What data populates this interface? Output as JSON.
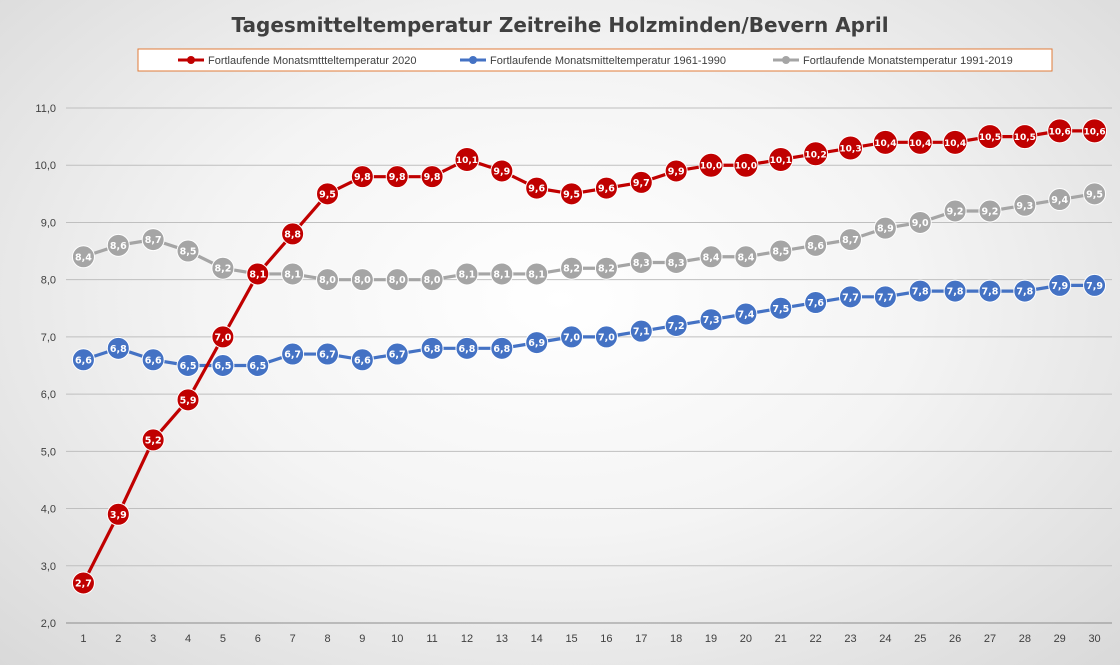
{
  "chart_data": {
    "type": "line",
    "title": "Tagesmitteltemperatur Zeitreihe Holzminden/Bevern April",
    "xlabel": "",
    "ylabel": "",
    "x": [
      1,
      2,
      3,
      4,
      5,
      6,
      7,
      8,
      9,
      10,
      11,
      12,
      13,
      14,
      15,
      16,
      17,
      18,
      19,
      20,
      21,
      22,
      23,
      24,
      25,
      26,
      27,
      28,
      29,
      30
    ],
    "ylim": [
      2.0,
      11.0
    ],
    "yticks": [
      "2,0",
      "3,0",
      "4,0",
      "5,0",
      "6,0",
      "7,0",
      "8,0",
      "9,0",
      "10,0",
      "11,0"
    ],
    "grid": "horizontal",
    "legend_position": "top",
    "series": [
      {
        "name": "Fortlaufende Monatsmttteltemperatur 2020",
        "color": "#c00000",
        "values": [
          2.7,
          3.9,
          5.2,
          5.9,
          7.0,
          8.1,
          8.8,
          9.5,
          9.8,
          9.8,
          9.8,
          10.1,
          9.9,
          9.6,
          9.5,
          9.6,
          9.7,
          9.9,
          10.0,
          10.0,
          10.1,
          10.2,
          10.3,
          10.4,
          10.4,
          10.4,
          10.5,
          10.5,
          10.6,
          10.6
        ],
        "labels": [
          "2,7",
          "3,9",
          "5,2",
          "5,9",
          "7,0",
          "8,1",
          "8,8",
          "9,5",
          "9,8",
          "9,8",
          "9,8",
          "10,1",
          "9,9",
          "9,6",
          "9,5",
          "9,6",
          "9,7",
          "9,9",
          "10,0",
          "10,0",
          "10,1",
          "10,2",
          "10,3",
          "10,4",
          "10,4",
          "10,4",
          "10,5",
          "10,5",
          "10,6",
          "10,6"
        ]
      },
      {
        "name": "Fortlaufende Monatsmitteltemperatur 1961-1990",
        "color": "#4472c4",
        "values": [
          6.6,
          6.8,
          6.6,
          6.5,
          6.5,
          6.5,
          6.7,
          6.7,
          6.6,
          6.7,
          6.8,
          6.8,
          6.8,
          6.9,
          7.0,
          7.0,
          7.1,
          7.2,
          7.3,
          7.4,
          7.5,
          7.6,
          7.7,
          7.7,
          7.8,
          7.8,
          7.8,
          7.8,
          7.9,
          7.9
        ],
        "labels": [
          "6,6",
          "6,8",
          "6,6",
          "6,5",
          "6,5",
          "6,5",
          "6,7",
          "6,7",
          "6,6",
          "6,7",
          "6,8",
          "6,8",
          "6,8",
          "6,9",
          "7,0",
          "7,0",
          "7,1",
          "7,2",
          "7,3",
          "7,4",
          "7,5",
          "7,6",
          "7,7",
          "7,7",
          "7,8",
          "7,8",
          "7,8",
          "7,8",
          "7,9",
          "7,9"
        ]
      },
      {
        "name": "Fortlaufende Monatstemperatur 1991-2019",
        "color": "#a5a5a5",
        "values": [
          8.4,
          8.6,
          8.7,
          8.5,
          8.2,
          8.1,
          8.1,
          8.0,
          8.0,
          8.0,
          8.0,
          8.1,
          8.1,
          8.1,
          8.2,
          8.2,
          8.3,
          8.3,
          8.4,
          8.4,
          8.5,
          8.6,
          8.7,
          8.9,
          9.0,
          9.2,
          9.2,
          9.3,
          9.4,
          9.5
        ],
        "labels": [
          "8,4",
          "8,6",
          "8,7",
          "8,5",
          "8,2",
          "8,1",
          "8,1",
          "8,0",
          "8,0",
          "8,0",
          "8,0",
          "8,1",
          "8,1",
          "8,1",
          "8,2",
          "8,2",
          "8,3",
          "8,3",
          "8,4",
          "8,4",
          "8,5",
          "8,6",
          "8,7",
          "8,9",
          "9,0",
          "9,2",
          "9,2",
          "9,3",
          "9,4",
          "9,5"
        ]
      }
    ]
  }
}
